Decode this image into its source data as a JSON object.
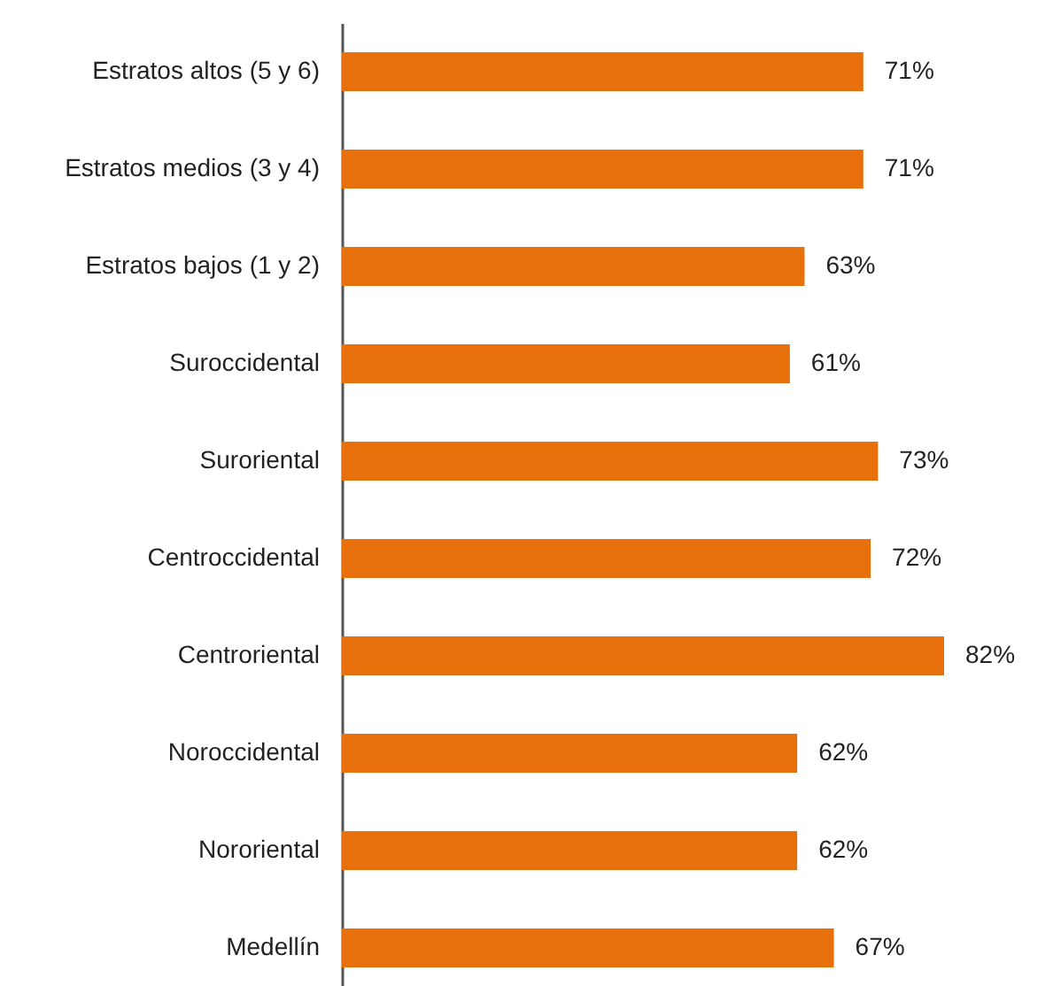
{
  "chart_data": {
    "type": "bar",
    "orientation": "horizontal",
    "categories": [
      "Estratos altos (5 y 6)",
      "Estratos medios (3 y 4)",
      "Estratos bajos (1 y 2)",
      "Suroccidental",
      "Suroriental",
      "Centroccidental",
      "Centroriental",
      "Noroccidental",
      "Nororiental",
      "Medellín"
    ],
    "values": [
      71,
      71,
      63,
      61,
      73,
      72,
      82,
      62,
      62,
      67
    ],
    "value_labels": [
      "71%",
      "71%",
      "63%",
      "61%",
      "73%",
      "72%",
      "82%",
      "62%",
      "62%",
      "67%"
    ],
    "color": "#e8700c"
  }
}
